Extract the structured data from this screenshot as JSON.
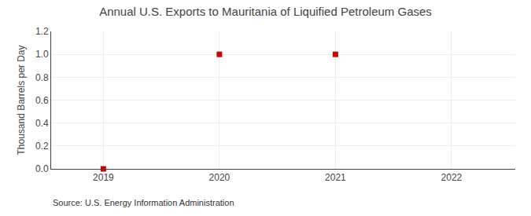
{
  "chart_data": {
    "type": "scatter",
    "title": "Annual U.S. Exports to Mauritania of Liquified Petroleum Gases",
    "y_label": "Thousand Barrels per Day",
    "annotations": [
      "Source: U.S. Energy Information Administration"
    ],
    "x": [
      2019,
      2020,
      2021
    ],
    "values": [
      0.0,
      1.0,
      1.0
    ],
    "color": "#cc0000",
    "marker": "square",
    "xlim": [
      2018.55,
      2022.55
    ],
    "xticks": [
      2019,
      2020,
      2021,
      2022
    ],
    "ylim": [
      0.0,
      1.2
    ],
    "yticks": [
      {
        "value": 0.0,
        "label": "0.0"
      },
      0.2,
      0.4,
      0.6,
      0.8,
      {
        "value": 1.0,
        "label": "1.0"
      },
      1.2
    ],
    "grid": true
  }
}
